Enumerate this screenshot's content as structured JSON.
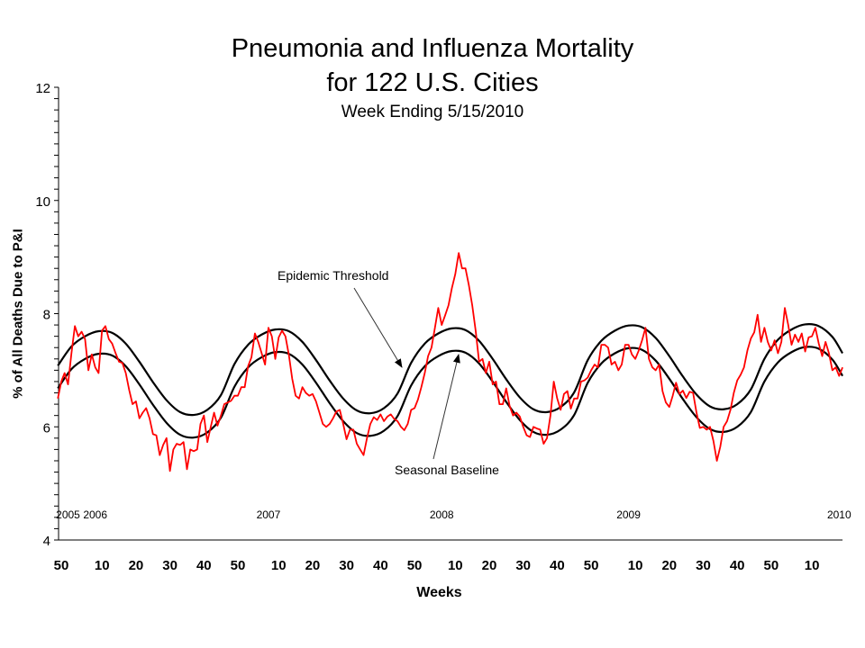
{
  "chart_data": {
    "type": "line",
    "title": "Pneumonia and Influenza Mortality",
    "title_line2": "for 122 U.S. Cities",
    "subtitle": "Week Ending  5/15/2010",
    "xlabel": "Weeks",
    "ylabel": "% of All Deaths Due to P&I",
    "ylim": [
      4,
      12
    ],
    "y_major_ticks": [
      4,
      6,
      8,
      10,
      12
    ],
    "y_minor_step": 0.2,
    "grid": false,
    "legend": "none",
    "x_tick_labels": [
      {
        "label": "50",
        "year": 2005,
        "week": 50
      },
      {
        "label": "10",
        "year": 2006,
        "week": 10
      },
      {
        "label": "20",
        "year": 2006,
        "week": 20
      },
      {
        "label": "30",
        "year": 2006,
        "week": 30
      },
      {
        "label": "40",
        "year": 2006,
        "week": 40
      },
      {
        "label": "50",
        "year": 2006,
        "week": 50
      },
      {
        "label": "10",
        "year": 2007,
        "week": 10
      },
      {
        "label": "20",
        "year": 2007,
        "week": 20
      },
      {
        "label": "30",
        "year": 2007,
        "week": 30
      },
      {
        "label": "40",
        "year": 2007,
        "week": 40
      },
      {
        "label": "50",
        "year": 2007,
        "week": 50
      },
      {
        "label": "10",
        "year": 2008,
        "week": 10
      },
      {
        "label": "20",
        "year": 2008,
        "week": 20
      },
      {
        "label": "30",
        "year": 2008,
        "week": 30
      },
      {
        "label": "40",
        "year": 2008,
        "week": 40
      },
      {
        "label": "50",
        "year": 2008,
        "week": 50
      },
      {
        "label": "10",
        "year": 2009,
        "week": 10
      },
      {
        "label": "20",
        "year": 2009,
        "week": 20
      },
      {
        "label": "30",
        "year": 2009,
        "week": 30
      },
      {
        "label": "40",
        "year": 2009,
        "week": 40
      },
      {
        "label": "50",
        "year": 2009,
        "week": 50
      },
      {
        "label": "10",
        "year": 2010,
        "week": 10
      }
    ],
    "year_labels": [
      {
        "label": "2005",
        "year": 2005,
        "week": 52
      },
      {
        "label": "2006",
        "year": 2006,
        "week": 8
      },
      {
        "label": "2007",
        "year": 2007,
        "week": 7
      },
      {
        "label": "2008",
        "year": 2008,
        "week": 6
      },
      {
        "label": "2009",
        "year": 2009,
        "week": 8
      },
      {
        "label": "2010",
        "year": 2010,
        "week": 18
      }
    ],
    "colors": {
      "pi": "#ff0000",
      "baseline": "#000000",
      "threshold": "#000000"
    },
    "pi_series": [
      {
        "year": 2005,
        "first_week": 49,
        "values": [
          6.5,
          6.8,
          6.95,
          6.75
        ]
      },
      {
        "year": 2006,
        "first_week": 1,
        "values": [
          7.3,
          7.78,
          7.6,
          7.68,
          7.55,
          7.0,
          7.28,
          7.05,
          6.95,
          7.7,
          7.78,
          7.55,
          7.47,
          7.3,
          7.15,
          7.13,
          6.95,
          6.65,
          6.4,
          6.45,
          6.15,
          6.25,
          6.33,
          6.15,
          5.87,
          5.85,
          5.5,
          5.68,
          5.8,
          5.22,
          5.6,
          5.7,
          5.68,
          5.73,
          5.25,
          5.6,
          5.57,
          5.6,
          6.05,
          6.2,
          5.73,
          6.0,
          6.25,
          6.02,
          6.2,
          6.4,
          6.43,
          6.46,
          6.55,
          6.55,
          6.7,
          6.7
        ]
      },
      {
        "year": 2007,
        "first_week": 1,
        "values": [
          7.07,
          7.23,
          7.65,
          7.5,
          7.3,
          7.1,
          7.75,
          7.6,
          7.2,
          7.58,
          7.7,
          7.6,
          7.27,
          6.85,
          6.55,
          6.5,
          6.7,
          6.6,
          6.55,
          6.58,
          6.45,
          6.25,
          6.05,
          6.0,
          6.05,
          6.15,
          6.27,
          6.3,
          6.05,
          5.78,
          5.95,
          5.95,
          5.7,
          5.6,
          5.5,
          5.8,
          6.05,
          6.17,
          6.12,
          6.22,
          6.1,
          6.18,
          6.22,
          6.14,
          6.1,
          6.0,
          5.94,
          6.05,
          6.3,
          6.33,
          6.48,
          6.7
        ]
      },
      {
        "year": 2008,
        "first_week": 1,
        "values": [
          6.95,
          7.25,
          7.4,
          7.75,
          8.1,
          7.8,
          7.97,
          8.15,
          8.45,
          8.7,
          9.07,
          8.8,
          8.8,
          8.5,
          8.15,
          7.7,
          7.15,
          7.2,
          6.95,
          7.15,
          6.75,
          6.8,
          6.4,
          6.4,
          6.68,
          6.37,
          6.2,
          6.25,
          6.18,
          6.0,
          5.85,
          5.82,
          6.0,
          5.97,
          5.95,
          5.7,
          5.8,
          6.2,
          6.8,
          6.5,
          6.3,
          6.58,
          6.63,
          6.32,
          6.5,
          6.5,
          6.8,
          6.82,
          6.87,
          7.0,
          7.1,
          7.05,
          7.45
        ]
      },
      {
        "year": 2009,
        "first_week": 1,
        "values": [
          7.45,
          7.4,
          7.1,
          7.15,
          7.0,
          7.1,
          7.45,
          7.45,
          7.28,
          7.2,
          7.35,
          7.53,
          7.75,
          7.2,
          7.05,
          7.0,
          7.1,
          6.63,
          6.43,
          6.35,
          6.55,
          6.78,
          6.58,
          6.64,
          6.51,
          6.62,
          6.6,
          6.25,
          5.98,
          6.0,
          5.95,
          6.0,
          5.75,
          5.4,
          5.65,
          6.0,
          6.1,
          6.3,
          6.6,
          6.82,
          6.92,
          7.05,
          7.35,
          7.56,
          7.67,
          7.98,
          7.5,
          7.75,
          7.5,
          7.35,
          7.53,
          7.3
        ]
      },
      {
        "year": 2010,
        "first_week": 1,
        "values": [
          7.5,
          8.1,
          7.8,
          7.45,
          7.63,
          7.5,
          7.65,
          7.33,
          7.58,
          7.6,
          7.75,
          7.47,
          7.25,
          7.5,
          7.3,
          7.0,
          7.05,
          6.9,
          7.05
        ]
      }
    ],
    "baseline": [
      [
        "2005-49",
        6.68
      ],
      [
        "2006-01",
        7.02
      ],
      [
        "2006-05",
        7.2
      ],
      [
        "2006-09",
        7.29
      ],
      [
        "2006-13",
        7.26
      ],
      [
        "2006-17",
        7.07
      ],
      [
        "2006-21",
        6.75
      ],
      [
        "2006-25",
        6.39
      ],
      [
        "2006-29",
        6.07
      ],
      [
        "2006-33",
        5.86
      ],
      [
        "2006-37",
        5.81
      ],
      [
        "2006-41",
        5.9
      ],
      [
        "2006-45",
        6.16
      ],
      [
        "2006-49",
        6.71
      ],
      [
        "2007-01",
        7.05
      ],
      [
        "2007-05",
        7.23
      ],
      [
        "2007-09",
        7.32
      ],
      [
        "2007-13",
        7.29
      ],
      [
        "2007-17",
        7.1
      ],
      [
        "2007-21",
        6.78
      ],
      [
        "2007-25",
        6.42
      ],
      [
        "2007-29",
        6.1
      ],
      [
        "2007-33",
        5.89
      ],
      [
        "2007-37",
        5.84
      ],
      [
        "2007-41",
        5.93
      ],
      [
        "2007-45",
        6.19
      ],
      [
        "2007-49",
        6.73
      ],
      [
        "2008-01",
        7.07
      ],
      [
        "2008-05",
        7.25
      ],
      [
        "2008-09",
        7.34
      ],
      [
        "2008-13",
        7.31
      ],
      [
        "2008-17",
        7.12
      ],
      [
        "2008-21",
        6.8
      ],
      [
        "2008-25",
        6.44
      ],
      [
        "2008-29",
        6.12
      ],
      [
        "2008-33",
        5.91
      ],
      [
        "2008-37",
        5.86
      ],
      [
        "2008-41",
        5.95
      ],
      [
        "2008-45",
        6.21
      ],
      [
        "2008-49",
        6.78
      ],
      [
        "2008-53",
        7.12
      ],
      [
        "2009-04",
        7.3
      ],
      [
        "2009-08",
        7.39
      ],
      [
        "2009-12",
        7.36
      ],
      [
        "2009-16",
        7.17
      ],
      [
        "2009-20",
        6.85
      ],
      [
        "2009-24",
        6.49
      ],
      [
        "2009-28",
        6.17
      ],
      [
        "2009-32",
        5.96
      ],
      [
        "2009-36",
        5.91
      ],
      [
        "2009-40",
        6.0
      ],
      [
        "2009-44",
        6.26
      ],
      [
        "2009-48",
        6.8
      ],
      [
        "2009-52",
        7.14
      ],
      [
        "2010-04",
        7.32
      ],
      [
        "2010-08",
        7.41
      ],
      [
        "2010-12",
        7.38
      ],
      [
        "2010-16",
        7.19
      ],
      [
        "2010-19",
        6.9
      ]
    ],
    "threshold_offset_above_baseline": 0.4,
    "annotations": {
      "threshold_label": "Epidemic Threshold",
      "baseline_label": "Seasonal Baseline"
    }
  }
}
